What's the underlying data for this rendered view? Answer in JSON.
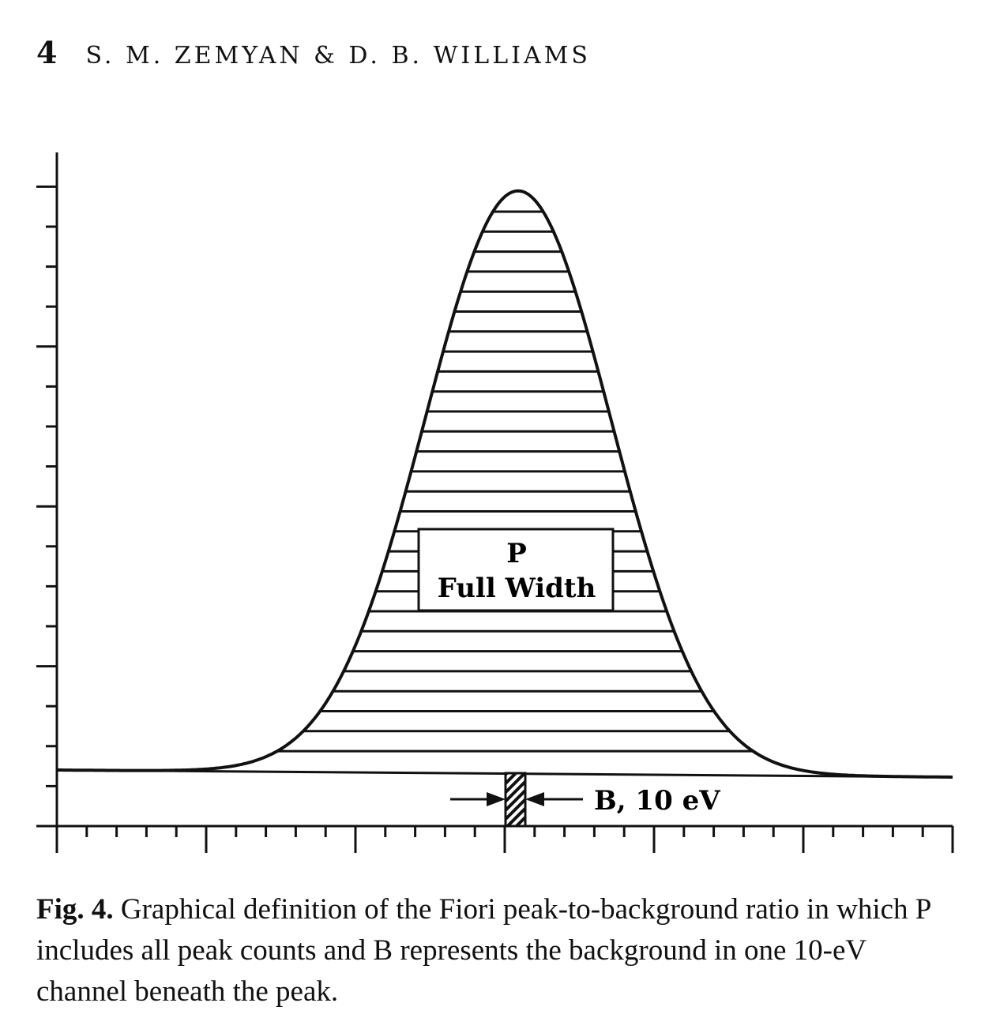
{
  "header": {
    "page_number": "4",
    "running_head": "S. M. ZEMYAN & D. B. WILLIAMS"
  },
  "figure": {
    "peak_label": "P",
    "peak_sublabel": "Full Width",
    "background_label": "B, 10 eV",
    "colors": {
      "ink": "#111111",
      "paper": "#ffffff"
    }
  },
  "caption": {
    "label": "Fig. 4.",
    "text": "Graphical definition of the Fiori peak-to-background ratio in which P includes all peak counts and B represents the background in one 10-eV channel beneath the peak."
  }
}
